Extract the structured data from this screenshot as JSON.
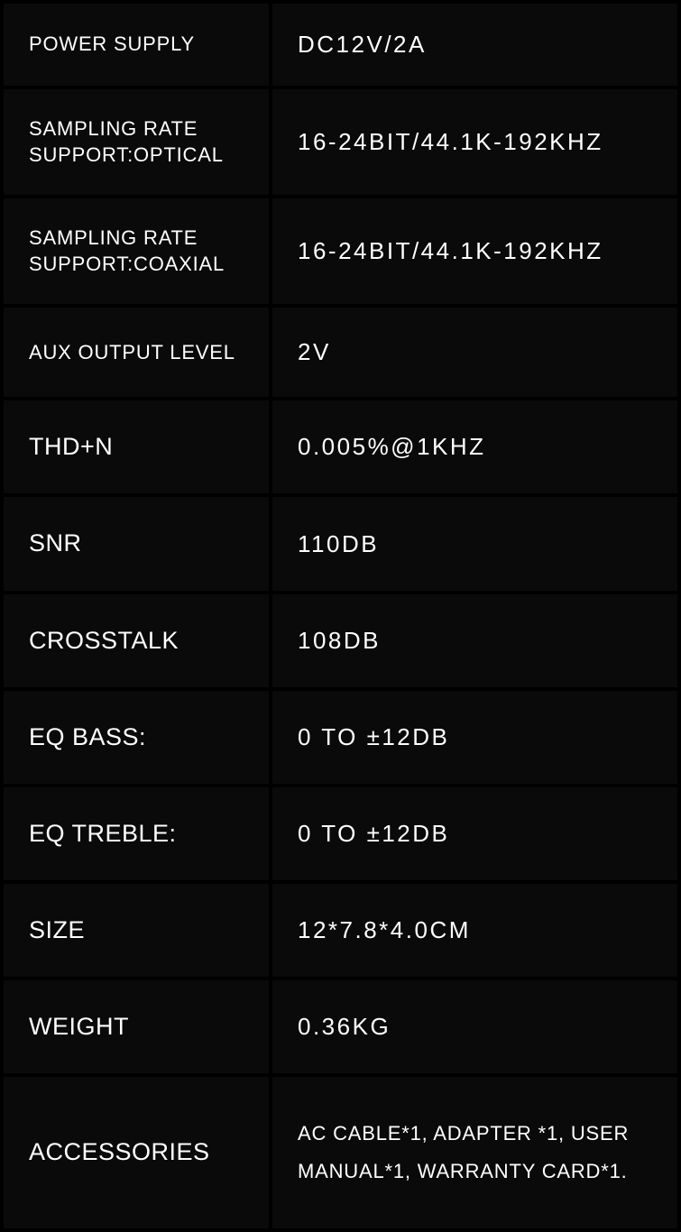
{
  "specs": {
    "rows": [
      {
        "label": "POWER SUPPLY",
        "value": "DC12V/2A",
        "labelBig": false,
        "valueSmall": false,
        "height": "narrow"
      },
      {
        "label": "SAMPLING RATE SUPPORT:OPTICAL",
        "value": "16-24BIT/44.1K-192KHZ",
        "labelBig": false,
        "valueSmall": false,
        "height": "narrow"
      },
      {
        "label": "SAMPLING RATE SUPPORT:COAXIAL",
        "value": "16-24BIT/44.1K-192KHZ",
        "labelBig": false,
        "valueSmall": false,
        "height": "narrow"
      },
      {
        "label": "AUX OUTPUT LEVEL",
        "value": "2V",
        "labelBig": false,
        "valueSmall": false,
        "height": "tall"
      },
      {
        "label": "THD+N",
        "value": "0.005%@1KHZ",
        "labelBig": true,
        "valueSmall": false,
        "height": "tall"
      },
      {
        "label": "SNR",
        "value": "110DB",
        "labelBig": true,
        "valueSmall": false,
        "height": "tall"
      },
      {
        "label": "CROSSTALK",
        "value": "108DB",
        "labelBig": true,
        "valueSmall": false,
        "height": "tall"
      },
      {
        "label": "EQ BASS:",
        "value": "0 TO ±12DB",
        "labelBig": true,
        "valueSmall": false,
        "height": "tall"
      },
      {
        "label": "EQ TREBLE:",
        "value": "0 TO ±12DB",
        "labelBig": true,
        "valueSmall": false,
        "height": "tall"
      },
      {
        "label": "SIZE",
        "value": "12*7.8*4.0CM",
        "labelBig": true,
        "valueSmall": false,
        "height": "tall"
      },
      {
        "label": "WEIGHT",
        "value": "0.36KG",
        "labelBig": true,
        "valueSmall": false,
        "height": "tall"
      },
      {
        "label": "ACCESSORIES",
        "value": "AC CABLE*1, ADAPTER *1, USER MANUAL*1, WARRANTY CARD*1.",
        "labelBig": true,
        "valueSmall": true,
        "height": "xtall"
      }
    ],
    "colors": {
      "page_bg": "#000000",
      "cell_bg": "#0a0a0a",
      "text": "#ffffff"
    }
  }
}
